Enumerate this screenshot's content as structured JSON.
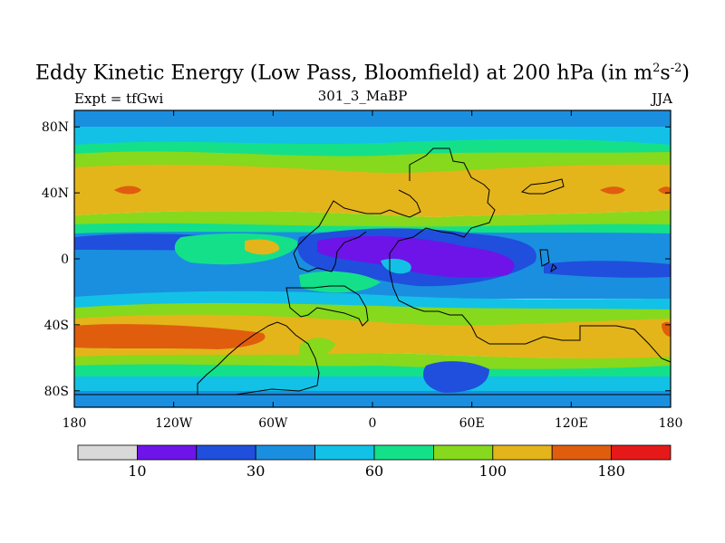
{
  "chart_data": {
    "type": "heatmap",
    "title_main": "Eddy Kinetic Energy (Low Pass, Bloomfield) at 200 hPa (in m",
    "title_sup1": "2",
    "title_mid": "s",
    "title_sup2": "-2",
    "title_end": ")",
    "left_subtitle": "Expt = tfGwi",
    "center_subtitle": "301_3_MaBP",
    "right_subtitle": "JJA",
    "x_ticks": [
      {
        "value": -180,
        "label": "180"
      },
      {
        "value": -120,
        "label": "120W"
      },
      {
        "value": -60,
        "label": "60W"
      },
      {
        "value": 0,
        "label": "0"
      },
      {
        "value": 60,
        "label": "60E"
      },
      {
        "value": 120,
        "label": "120E"
      },
      {
        "value": 180,
        "label": "180"
      }
    ],
    "y_ticks": [
      {
        "value": 80,
        "label": "80N"
      },
      {
        "value": 40,
        "label": "40N"
      },
      {
        "value": 0,
        "label": "0"
      },
      {
        "value": -40,
        "label": "40S"
      },
      {
        "value": -80,
        "label": "80S"
      }
    ],
    "xlim": [
      -180,
      180
    ],
    "ylim": [
      -90,
      90
    ],
    "colorbar": {
      "colors": [
        "#d9d9d9",
        "#6e14e8",
        "#1f4fdc",
        "#1a8fe0",
        "#13c1e6",
        "#14e08a",
        "#86d91c",
        "#e3b51a",
        "#e05d0e",
        "#e61919"
      ],
      "labels": [
        {
          "boundary": 1,
          "text": "10"
        },
        {
          "boundary": 3,
          "text": "30"
        },
        {
          "boundary": 5,
          "text": "60"
        },
        {
          "boundary": 7,
          "text": "100"
        },
        {
          "boundary": 9,
          "text": "180"
        }
      ]
    },
    "levels": [
      10,
      20,
      30,
      45,
      60,
      80,
      100,
      140,
      180,
      220
    ]
  }
}
